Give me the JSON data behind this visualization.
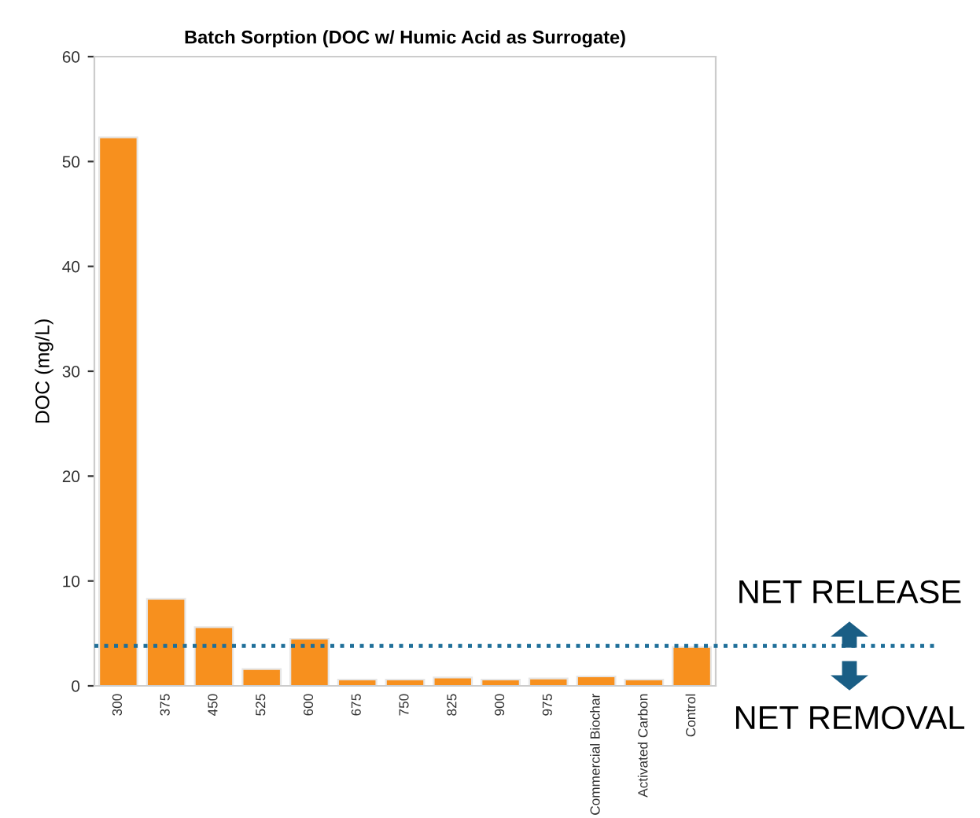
{
  "chart_data": {
    "type": "bar",
    "title": "Batch Sorption (DOC w/ Humic Acid as Surrogate)",
    "ylabel": "DOC (mg/L)",
    "categories": [
      "300",
      "375",
      "450",
      "525",
      "600",
      "675",
      "750",
      "825",
      "900",
      "975",
      "Commercial Biochar",
      "Activated Carbon",
      "Control"
    ],
    "values": [
      52.3,
      8.3,
      5.6,
      1.6,
      4.5,
      0.6,
      0.6,
      0.8,
      0.6,
      0.7,
      0.9,
      0.6,
      3.7
    ],
    "color": "#f7901e",
    "ylim": [
      0,
      60
    ],
    "yticks": [
      0,
      10,
      20,
      30,
      40,
      50,
      60
    ],
    "grid": false,
    "legend": false,
    "ref_lines": [
      {
        "axis": "y",
        "value": 3.8,
        "color": "#1f6f99",
        "line_style": "dotted"
      }
    ],
    "annotations": [
      "NET RELEASE",
      "NET REMOVAL"
    ]
  }
}
